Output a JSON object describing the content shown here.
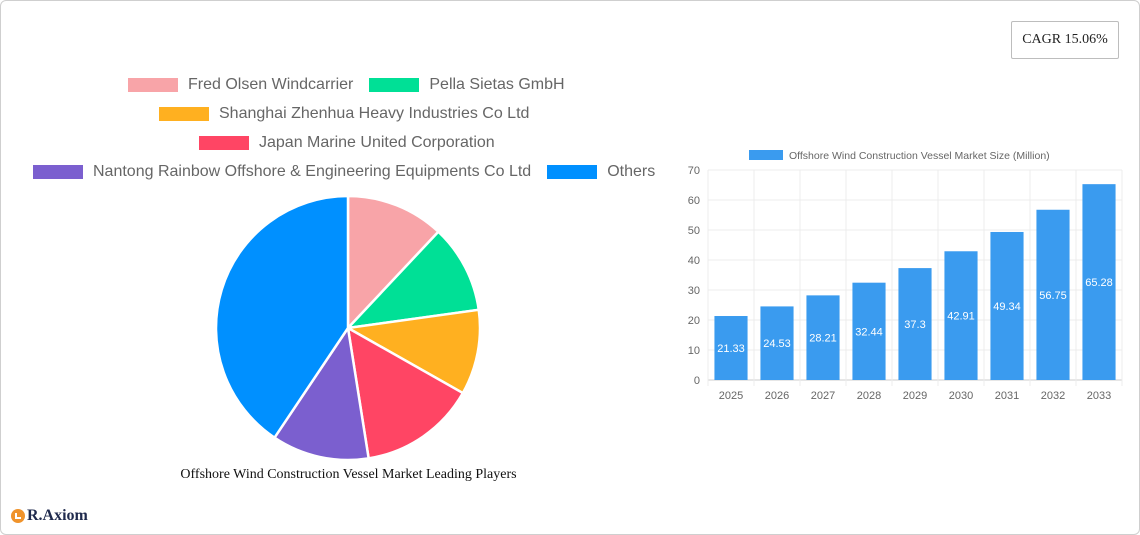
{
  "badge": {
    "cagr": "CAGR 15.06%"
  },
  "logo": {
    "text": "R.Axiom"
  },
  "pie": {
    "title": "Offshore Wind Construction Vessel Market Leading Players",
    "legend": [
      {
        "label": "Fred  Olsen Windcarrier",
        "color": "#F8A4A8"
      },
      {
        "label": "Pella Sietas GmbH",
        "color": "#00E096"
      },
      {
        "label": "Shanghai Zhenhua Heavy Industries Co  Ltd",
        "color": "#FFB020"
      },
      {
        "label": "Japan Marine United Corporation",
        "color": "#FF4564"
      },
      {
        "label": "Nantong Rainbow Offshore & Engineering Equipments Co  Ltd",
        "color": "#7B5FCF"
      },
      {
        "label": "Others",
        "color": "#0090FF"
      }
    ]
  },
  "chart_data": [
    {
      "type": "pie",
      "title": "Offshore Wind Construction Vessel Market Leading Players",
      "categories": [
        "Fred  Olsen Windcarrier",
        "Pella Sietas GmbH",
        "Shanghai Zhenhua Heavy Industries Co  Ltd",
        "Japan Marine United Corporation",
        "Nantong Rainbow Offshore & Engineering Equipments Co  Ltd",
        "Others"
      ],
      "values": [
        12,
        10.8,
        10.4,
        14.3,
        11.9,
        40.6
      ],
      "colors": [
        "#F8A4A8",
        "#00E096",
        "#FFB020",
        "#FF4564",
        "#7B5FCF",
        "#0090FF"
      ],
      "legend_position": "top"
    },
    {
      "type": "bar",
      "title": "",
      "legend": [
        "Offshore Wind Construction Vessel Market Size (Million)"
      ],
      "categories": [
        "2025",
        "2026",
        "2027",
        "2028",
        "2029",
        "2030",
        "2031",
        "2032",
        "2033"
      ],
      "values": [
        21.33,
        24.53,
        28.21,
        32.44,
        37.3,
        42.91,
        49.34,
        56.75,
        65.28
      ],
      "xlabel": "",
      "ylabel": "",
      "ylim": [
        0,
        70
      ],
      "yticks": [
        0,
        10,
        20,
        30,
        40,
        50,
        60,
        70
      ],
      "grid": true,
      "bar_color": "#3A9BEF",
      "data_labels": true,
      "legend_position": "top"
    }
  ]
}
